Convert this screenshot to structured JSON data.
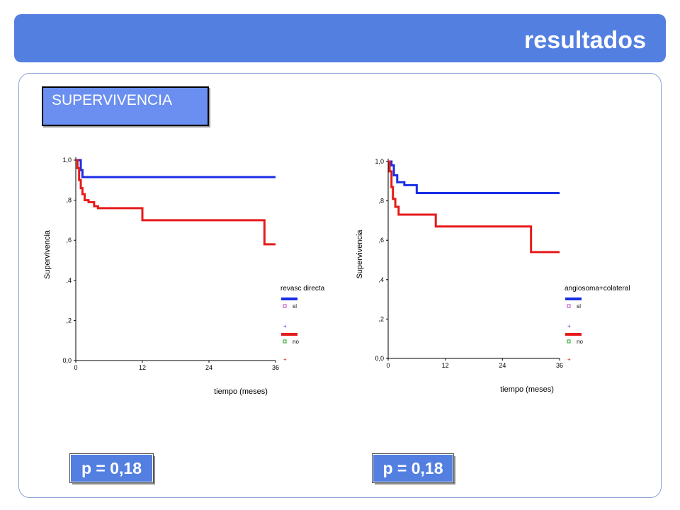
{
  "header": {
    "title": "resultados"
  },
  "section": {
    "label": "SUPERVIVENCIA"
  },
  "badges": [
    {
      "text": "p = 0,18"
    },
    {
      "text": "p = 0,18"
    }
  ],
  "colors": {
    "series_si": "#1a2ee6",
    "series_no": "#e61a1a",
    "header": "#537fe1"
  },
  "chart_data": [
    {
      "type": "line",
      "title": "",
      "xlabel": "tiempo (meses)",
      "ylabel": "Supervivencia",
      "xlim": [
        0,
        36
      ],
      "ylim": [
        0,
        1
      ],
      "x_ticks": [
        "0",
        "12",
        "24",
        "36"
      ],
      "y_ticks": [
        "0,0",
        ",2",
        ",4",
        ",6",
        ",8",
        "1,0"
      ],
      "legend": {
        "title": "revasc directa",
        "entries": [
          {
            "label": "sí",
            "censor": "+"
          },
          {
            "label": "no",
            "censor": "+"
          }
        ],
        "placement": "right"
      },
      "series": [
        {
          "name": "sí",
          "x": [
            0,
            0.6,
            0.9,
            1.2,
            36
          ],
          "y": [
            1.0,
            1.0,
            0.95,
            0.915,
            0.915
          ]
        },
        {
          "name": "no",
          "x": [
            0,
            0.3,
            0.6,
            0.9,
            1.2,
            1.6,
            2.3,
            3.3,
            4.0,
            12.0,
            34.0,
            36
          ],
          "y": [
            1.0,
            0.96,
            0.9,
            0.86,
            0.83,
            0.8,
            0.79,
            0.77,
            0.76,
            0.7,
            0.58,
            0.58
          ]
        }
      ]
    },
    {
      "type": "line",
      "title": "",
      "xlabel": "tiempo (meses)",
      "ylabel": "Supervivencia",
      "xlim": [
        0,
        36
      ],
      "ylim": [
        0,
        1
      ],
      "x_ticks": [
        "0",
        "12",
        "24",
        "36"
      ],
      "y_ticks": [
        "0,0",
        ",2",
        ",4",
        ",6",
        ",8",
        "1,0"
      ],
      "legend": {
        "title": "angiosoma+colateral",
        "entries": [
          {
            "label": "sí",
            "censor": "+"
          },
          {
            "label": "no",
            "censor": "+"
          }
        ],
        "placement": "right"
      },
      "series": [
        {
          "name": "sí",
          "x": [
            0,
            0.7,
            1.2,
            1.9,
            3.4,
            6.0,
            36
          ],
          "y": [
            1.0,
            0.98,
            0.93,
            0.895,
            0.88,
            0.84,
            0.84
          ]
        },
        {
          "name": "no",
          "x": [
            0,
            0.3,
            0.7,
            1.0,
            1.5,
            2.2,
            10.0,
            30.0,
            36
          ],
          "y": [
            1.0,
            0.95,
            0.87,
            0.81,
            0.77,
            0.73,
            0.67,
            0.54,
            0.54
          ]
        }
      ]
    }
  ]
}
